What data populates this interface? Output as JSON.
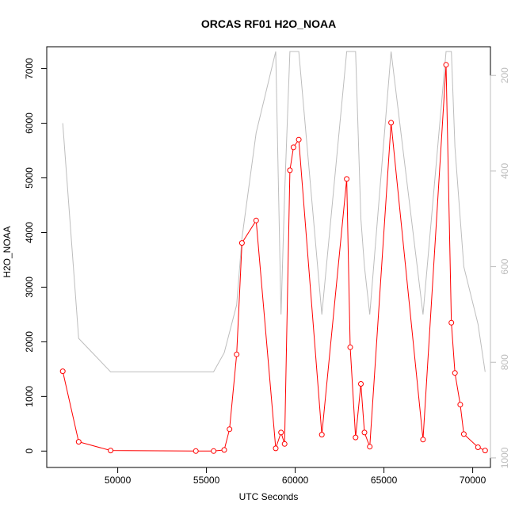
{
  "chart_data": {
    "type": "line",
    "title": "ORCAS RF01 H2O_NOAA",
    "xlabel": "UTC Seconds",
    "ylabel": "H2O_NOAA",
    "xlim": [
      46000,
      71000
    ],
    "ylim": [
      -300,
      7400
    ],
    "x_ticks": [
      50000,
      55000,
      60000,
      65000,
      70000
    ],
    "y_ticks": [
      0,
      1000,
      2000,
      3000,
      4000,
      5000,
      6000,
      7000
    ],
    "right_axis": {
      "ylim": [
        1020,
        140
      ],
      "reversed": true,
      "ticks": [
        200,
        400,
        600,
        800,
        1000
      ],
      "color": "#bdbdbd"
    },
    "series": [
      {
        "role": "primary",
        "color": "#ff0000",
        "marker": "open-circle",
        "x": [
          46900,
          47800,
          49600,
          54400,
          55400,
          56000,
          56300,
          56700,
          57000,
          57800,
          58900,
          59200,
          59400,
          59700,
          59900,
          60200,
          61500,
          62900,
          63100,
          63400,
          63700,
          63900,
          64200,
          65400,
          67200,
          68500,
          68800,
          69000,
          69300,
          69500,
          70300,
          70700
        ],
        "values": [
          1460,
          170,
          10,
          0,
          0,
          20,
          400,
          1770,
          3810,
          4220,
          50,
          340,
          130,
          5140,
          5560,
          5700,
          300,
          4980,
          1900,
          250,
          1230,
          340,
          80,
          6010,
          210,
          7070,
          2350,
          1430,
          850,
          310,
          70,
          10
        ]
      },
      {
        "role": "secondary",
        "color": "#bdbdbd",
        "marker": "none",
        "x": [
          46900,
          47800,
          49600,
          54400,
          55400,
          56000,
          56700,
          57000,
          57800,
          58900,
          59200,
          59400,
          59700,
          59900,
          60200,
          61500,
          62900,
          63100,
          63400,
          63700,
          63900,
          64200,
          65400,
          67200,
          68500,
          68800,
          69000,
          69300,
          69500,
          70300,
          70700
        ],
        "values": [
          300,
          750,
          820,
          820,
          820,
          780,
          680,
          540,
          320,
          150,
          700,
          450,
          150,
          150,
          150,
          700,
          150,
          150,
          150,
          500,
          600,
          700,
          150,
          700,
          150,
          150,
          350,
          500,
          600,
          720,
          820
        ]
      }
    ],
    "grid": false,
    "legend": "none"
  }
}
